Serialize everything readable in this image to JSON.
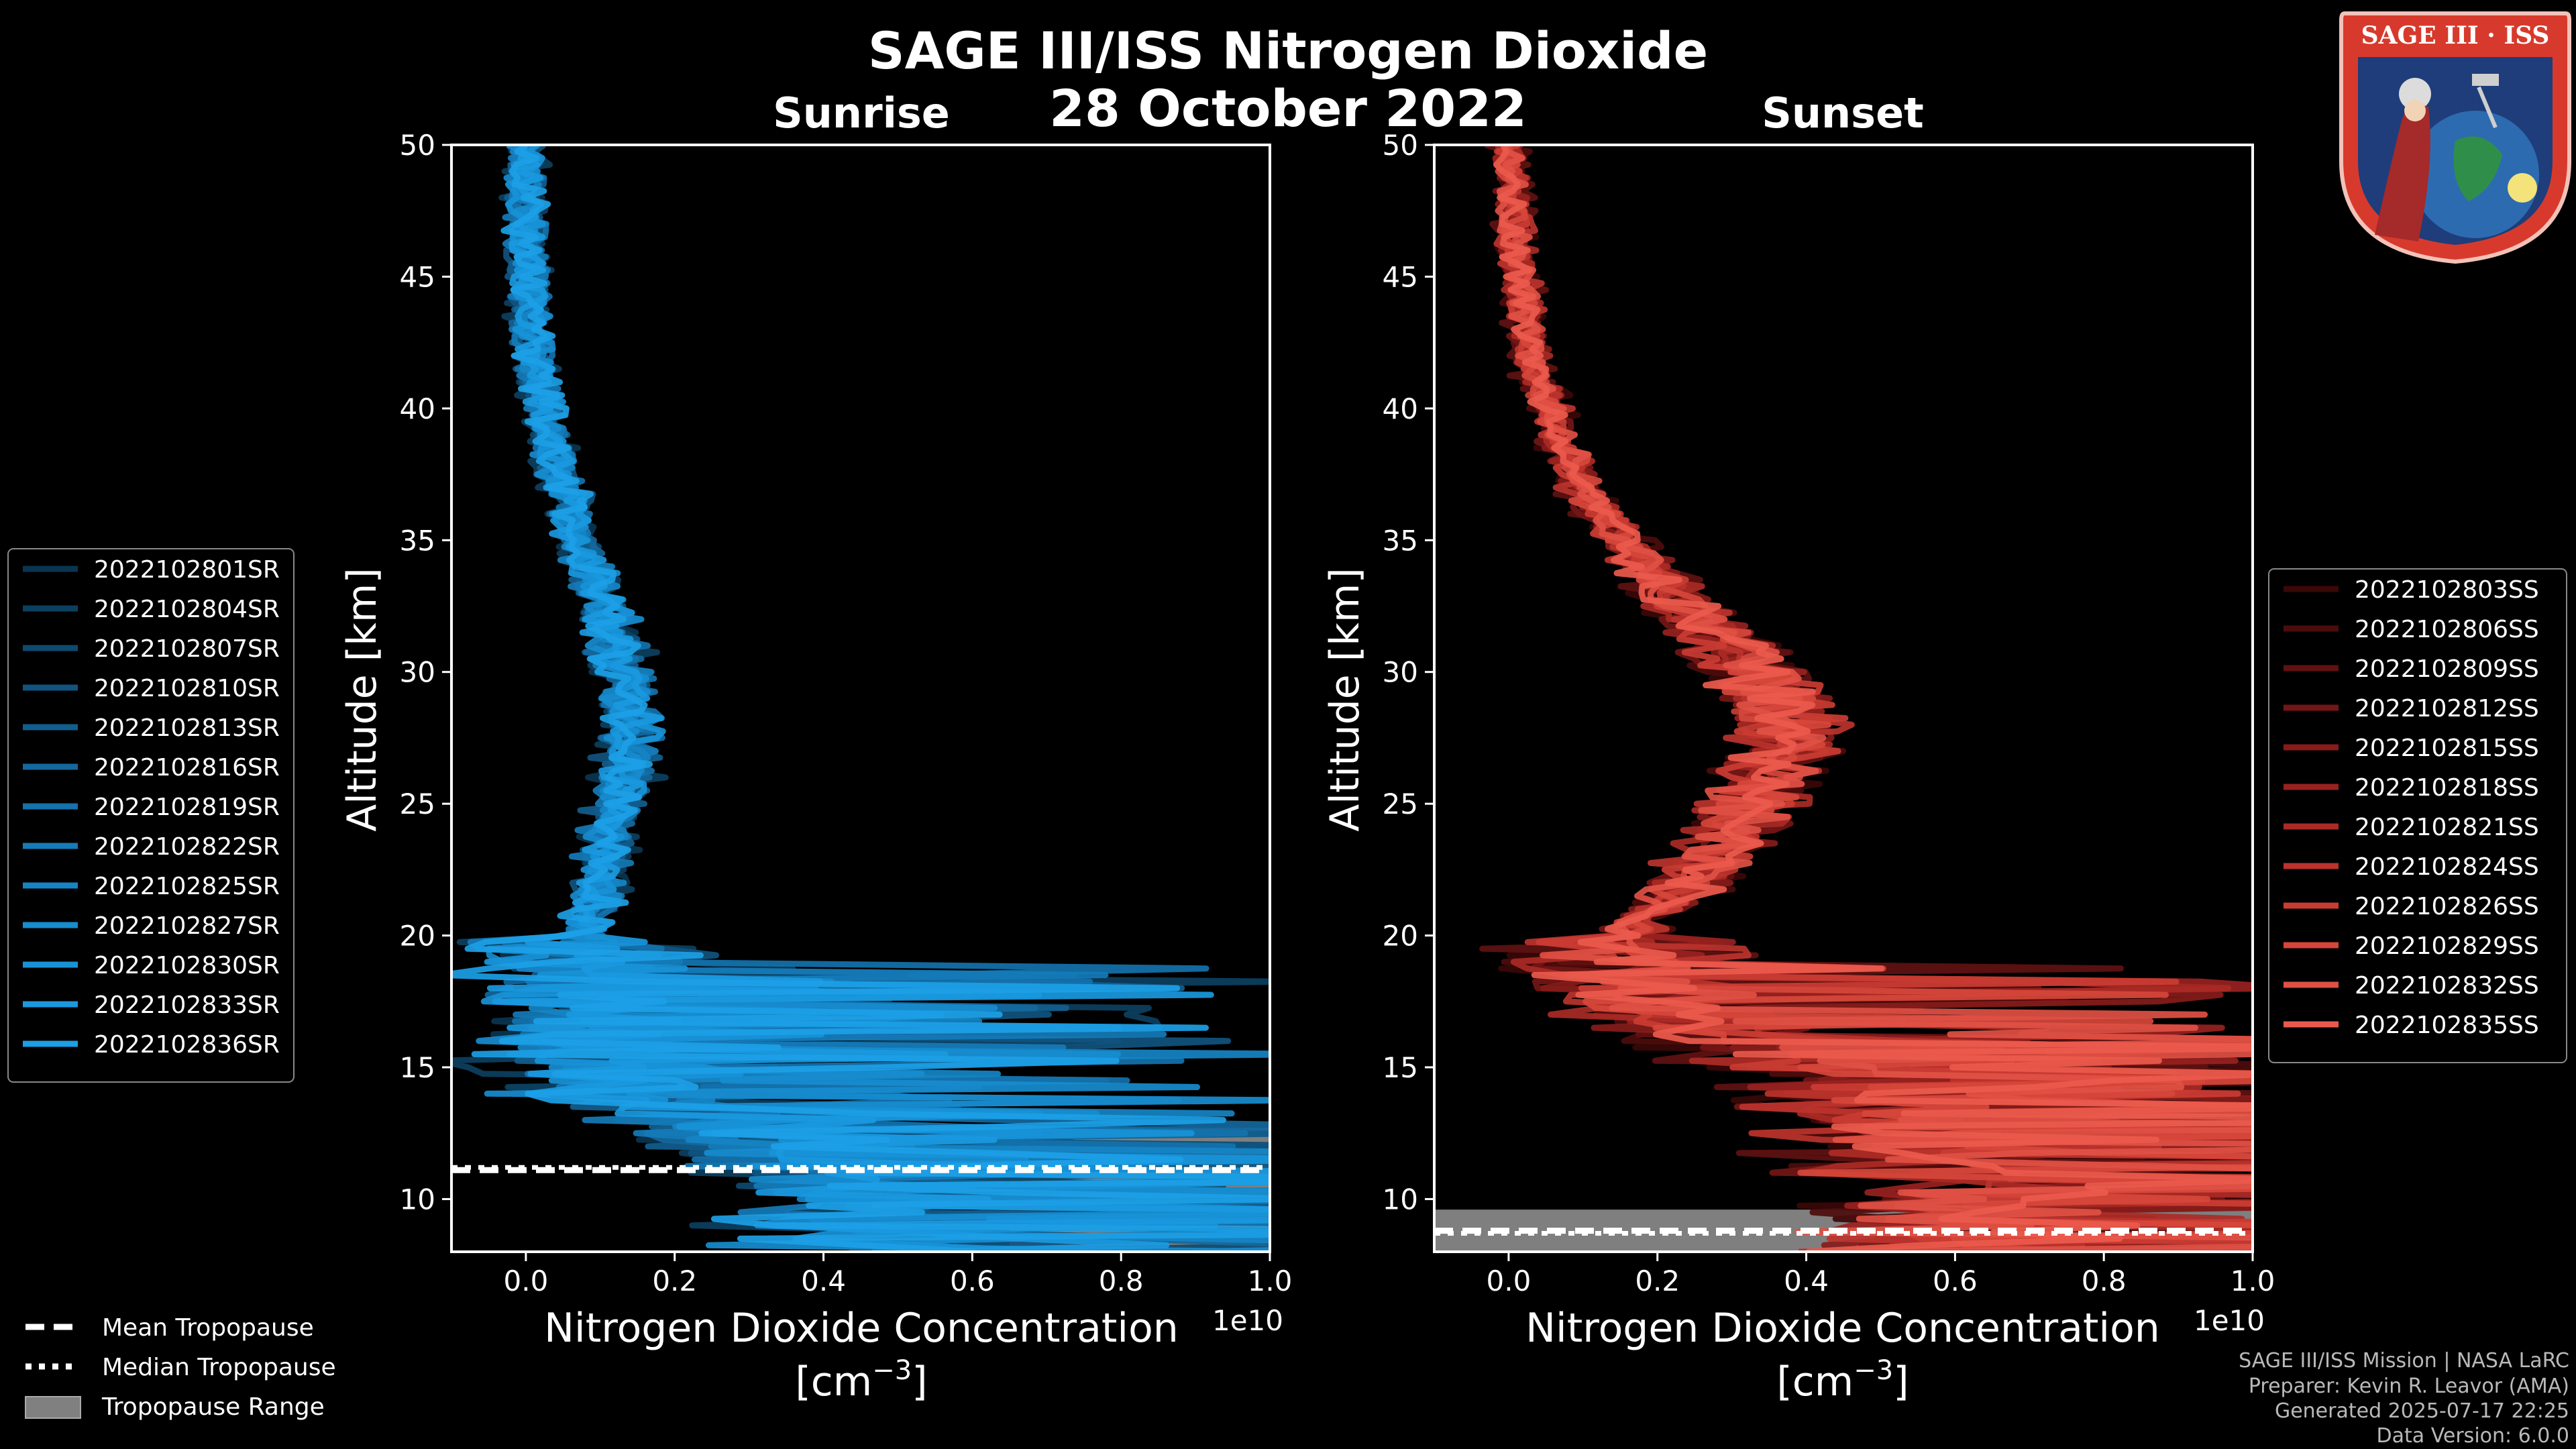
{
  "figure": {
    "title": "SAGE III/ISS Nitrogen Dioxide",
    "subtitle": "28 October 2022",
    "logo_text": "SAGE III · ISS",
    "credits": [
      "SAGE III/ISS Mission | NASA LaRC",
      "Preparer: Kevin R. Leavor (AMA)",
      "Generated 2025-07-17 22:25",
      "Data Version: 6.0.0"
    ]
  },
  "tropopause_legend": [
    {
      "label": "Mean Tropopause",
      "style": "dashed"
    },
    {
      "label": "Median Tropopause",
      "style": "dotted"
    },
    {
      "label": "Tropopause Range",
      "style": "patch"
    }
  ],
  "chart_data": [
    {
      "type": "line",
      "title": "Sunrise",
      "xlabel": "Nitrogen Dioxide Concentration",
      "xlabel_units": "[cm",
      "xlabel_units_exp": "−3",
      "xlabel_units_close": "]",
      "ylabel": "Altitude [km]",
      "x_scale_label": "1e10",
      "xlim": [
        -0.1,
        1.0
      ],
      "ylim": [
        8,
        50
      ],
      "xticks": [
        0.0,
        0.2,
        0.4,
        0.6,
        0.8,
        1.0
      ],
      "xtick_labels": [
        "0.0",
        "0.2",
        "0.4",
        "0.6",
        "0.8",
        "1.0"
      ],
      "yticks": [
        10,
        15,
        20,
        25,
        30,
        35,
        40,
        45,
        50
      ],
      "ytick_labels": [
        "10",
        "15",
        "20",
        "25",
        "30",
        "35",
        "40",
        "45",
        "50"
      ],
      "legend_position": "left",
      "tropopause": {
        "mean_km": 11.1,
        "median_km": 11.2,
        "range_km": [
          8,
          12.7
        ],
        "range_x_start": 0.65
      },
      "profile_shape": {
        "alt": [
          8,
          10,
          12,
          14,
          16,
          18,
          20,
          22,
          24,
          26,
          28,
          30,
          32,
          35,
          38,
          42,
          46,
          50
        ],
        "mean": [
          0.5,
          0.45,
          0.35,
          0.12,
          0.1,
          0.07,
          0.08,
          0.1,
          0.11,
          0.13,
          0.14,
          0.13,
          0.11,
          0.07,
          0.04,
          0.01,
          0.0,
          0.0
        ]
      },
      "series": [
        {
          "name": "2022102801SR",
          "color": "#0a3550"
        },
        {
          "name": "2022102804SR",
          "color": "#0c4060"
        },
        {
          "name": "2022102807SR",
          "color": "#0e4a6f"
        },
        {
          "name": "2022102810SR",
          "color": "#10547f"
        },
        {
          "name": "2022102813SR",
          "color": "#125e8e"
        },
        {
          "name": "2022102816SR",
          "color": "#13689d"
        },
        {
          "name": "2022102819SR",
          "color": "#1472ac"
        },
        {
          "name": "2022102822SR",
          "color": "#157bb9"
        },
        {
          "name": "2022102825SR",
          "color": "#1684c4"
        },
        {
          "name": "2022102827SR",
          "color": "#178ccf"
        },
        {
          "name": "2022102830SR",
          "color": "#1893d8"
        },
        {
          "name": "2022102833SR",
          "color": "#1a99df"
        },
        {
          "name": "2022102836SR",
          "color": "#1c9fe6"
        }
      ]
    },
    {
      "type": "line",
      "title": "Sunset",
      "xlabel": "Nitrogen Dioxide Concentration",
      "xlabel_units": "[cm",
      "xlabel_units_exp": "−3",
      "xlabel_units_close": "]",
      "ylabel": "Altitude [km]",
      "x_scale_label": "1e10",
      "xlim": [
        -0.1,
        1.0
      ],
      "ylim": [
        8,
        50
      ],
      "xticks": [
        0.0,
        0.2,
        0.4,
        0.6,
        0.8,
        1.0
      ],
      "xtick_labels": [
        "0.0",
        "0.2",
        "0.4",
        "0.6",
        "0.8",
        "1.0"
      ],
      "yticks": [
        10,
        15,
        20,
        25,
        30,
        35,
        40,
        45,
        50
      ],
      "ytick_labels": [
        "10",
        "15",
        "20",
        "25",
        "30",
        "35",
        "40",
        "45",
        "50"
      ],
      "legend_position": "right",
      "tropopause": {
        "mean_km": 8.8,
        "median_km": 8.7,
        "range_km": [
          8,
          9.6
        ],
        "range_x_start": -0.1
      },
      "profile_shape": {
        "alt": [
          8,
          10,
          12,
          14,
          16,
          18,
          20,
          21,
          22,
          24,
          26,
          28,
          29,
          30,
          32,
          35,
          38,
          42,
          46,
          50
        ],
        "mean": [
          0.6,
          0.6,
          0.55,
          0.5,
          0.3,
          0.15,
          0.15,
          0.2,
          0.25,
          0.3,
          0.35,
          0.38,
          0.36,
          0.33,
          0.25,
          0.15,
          0.08,
          0.03,
          0.01,
          0.0
        ]
      },
      "series": [
        {
          "name": "2022102803SS",
          "color": "#3a0808"
        },
        {
          "name": "2022102806SS",
          "color": "#4d0c0c"
        },
        {
          "name": "2022102809SS",
          "color": "#601111"
        },
        {
          "name": "2022102812SS",
          "color": "#731616"
        },
        {
          "name": "2022102815SS",
          "color": "#861c1a"
        },
        {
          "name": "2022102818SS",
          "color": "#98221f"
        },
        {
          "name": "2022102821SS",
          "color": "#aa2a25"
        },
        {
          "name": "2022102824SS",
          "color": "#bb332c"
        },
        {
          "name": "2022102826SS",
          "color": "#ca3c33"
        },
        {
          "name": "2022102829SS",
          "color": "#d6463b"
        },
        {
          "name": "2022102832SS",
          "color": "#e05044"
        },
        {
          "name": "2022102835SS",
          "color": "#ea5a4c"
        }
      ]
    }
  ]
}
